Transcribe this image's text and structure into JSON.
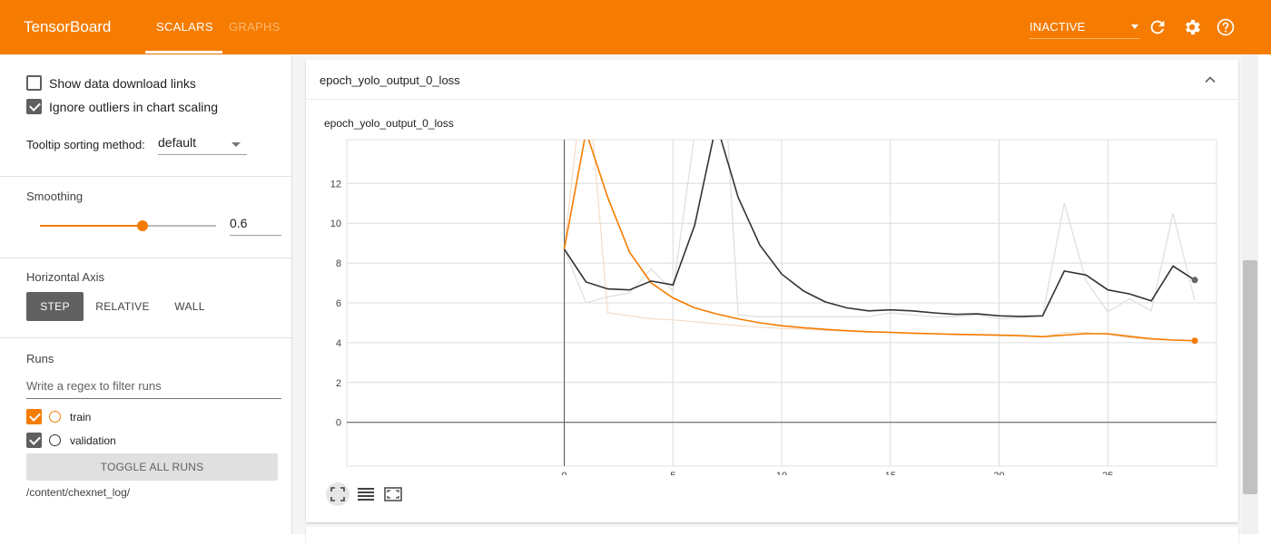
{
  "header": {
    "brand": "TensorBoard",
    "tabs": [
      {
        "label": "SCALARS",
        "active": true
      },
      {
        "label": "GRAPHS",
        "active": false
      }
    ],
    "status_select": "INACTIVE",
    "icons": [
      "refresh-icon",
      "settings-icon",
      "help-icon"
    ],
    "accent": "#f57c00"
  },
  "sidebar": {
    "options": [
      {
        "label": "Show data download links",
        "checked": false
      },
      {
        "label": "Ignore outliers in chart scaling",
        "checked": true
      }
    ],
    "tooltip_sorting": {
      "label": "Tooltip sorting method:",
      "value": "default"
    },
    "smoothing": {
      "label": "Smoothing",
      "value": "0.6",
      "fraction": 0.6
    },
    "horizontal_axis": {
      "label": "Horizontal Axis",
      "options": [
        "STEP",
        "RELATIVE",
        "WALL"
      ],
      "selected": "STEP"
    },
    "runs": {
      "label": "Runs",
      "filter_placeholder": "Write a regex to filter runs",
      "items": [
        {
          "name": "train",
          "checked": true,
          "color": "#f57c00"
        },
        {
          "name": "validation",
          "checked": true,
          "color": "#333333"
        }
      ],
      "toggle_label": "TOGGLE ALL RUNS",
      "logdir": "/content/chexnet_log/"
    }
  },
  "card": {
    "header_title": "epoch_yolo_output_0_loss",
    "chart_title": "epoch_yolo_output_0_loss",
    "tool_icons": [
      "fit-domain-icon",
      "toggle-log-icon",
      "expand-chart-icon"
    ]
  },
  "chart_data": {
    "type": "line",
    "title": "epoch_yolo_output_0_loss",
    "xlim": [
      -10,
      30
    ],
    "ylim": [
      -2.2,
      14.2
    ],
    "x_ticks": [
      0,
      5,
      10,
      15,
      20,
      25
    ],
    "y_ticks": [
      0,
      2,
      4,
      6,
      8,
      10,
      12
    ],
    "grid": true,
    "series": [
      {
        "name": "train",
        "color": "#f57c00",
        "x": [
          0,
          1,
          2,
          3,
          4,
          5,
          6,
          7,
          8,
          9,
          10,
          11,
          12,
          13,
          14,
          15,
          16,
          17,
          18,
          19,
          20,
          21,
          22,
          23,
          24,
          25,
          26,
          27,
          28,
          29
        ],
        "smoothed": [
          8.7,
          14.6,
          11.3,
          8.55,
          7.0,
          6.25,
          5.75,
          5.45,
          5.2,
          5.0,
          4.85,
          4.75,
          4.67,
          4.6,
          4.55,
          4.52,
          4.48,
          4.45,
          4.42,
          4.4,
          4.38,
          4.35,
          4.3,
          4.38,
          4.45,
          4.45,
          4.32,
          4.2,
          4.13,
          4.1
        ],
        "raw": [
          8.7,
          18.5,
          5.5,
          5.35,
          5.2,
          5.15,
          5.05,
          4.95,
          4.85,
          4.78,
          4.72,
          4.68,
          4.62,
          4.58,
          4.53,
          4.5,
          4.46,
          4.43,
          4.4,
          4.38,
          4.36,
          4.33,
          4.3,
          4.5,
          4.5,
          4.4,
          4.25,
          4.15,
          4.12,
          4.1
        ]
      },
      {
        "name": "validation",
        "color": "#333333",
        "x": [
          0,
          1,
          2,
          3,
          4,
          5,
          6,
          7,
          8,
          9,
          10,
          11,
          12,
          13,
          14,
          15,
          16,
          17,
          18,
          19,
          20,
          21,
          22,
          23,
          24,
          25,
          26,
          27,
          28,
          29
        ],
        "smoothed": [
          8.7,
          7.05,
          6.7,
          6.65,
          7.1,
          6.9,
          9.9,
          15.0,
          11.3,
          8.9,
          7.45,
          6.6,
          6.05,
          5.75,
          5.6,
          5.65,
          5.6,
          5.5,
          5.42,
          5.45,
          5.35,
          5.32,
          5.35,
          7.6,
          7.4,
          6.65,
          6.45,
          6.1,
          7.85,
          7.15
        ],
        "raw": [
          8.7,
          6.0,
          6.3,
          6.5,
          7.7,
          6.6,
          14.5,
          24.0,
          5.4,
          5.3,
          5.3,
          5.3,
          5.3,
          5.3,
          5.3,
          5.5,
          5.4,
          5.3,
          5.3,
          5.4,
          5.2,
          5.25,
          5.35,
          11.0,
          7.1,
          5.55,
          6.2,
          5.6,
          10.5,
          6.1
        ]
      }
    ]
  }
}
